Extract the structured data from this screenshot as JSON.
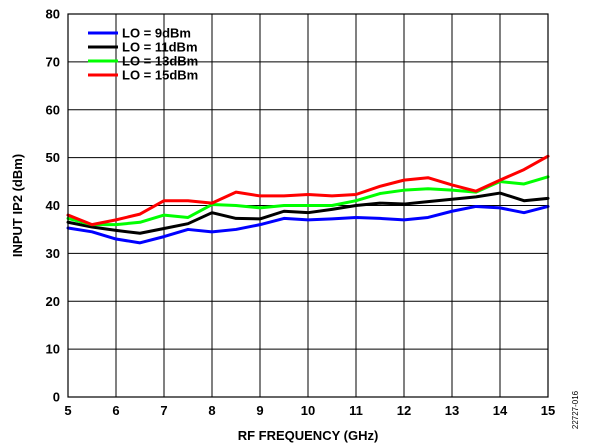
{
  "chart_data": {
    "type": "line",
    "xlabel": "RF FREQUENCY (GHz)",
    "ylabel": "INPUT IP2 (dBm)",
    "xlim": [
      5,
      15
    ],
    "ylim": [
      0,
      80
    ],
    "xticks": [
      5,
      6,
      7,
      8,
      9,
      10,
      11,
      12,
      13,
      14,
      15
    ],
    "yticks": [
      0,
      10,
      20,
      30,
      40,
      50,
      60,
      70,
      80
    ],
    "x_tick_labels": [
      "5",
      "6",
      "7",
      "8",
      "9",
      "10",
      "11",
      "12",
      "13",
      "14",
      "15"
    ],
    "y_tick_labels": [
      "0",
      "10",
      "20",
      "30",
      "40",
      "50",
      "60",
      "70",
      "80"
    ],
    "grid": true,
    "legend_position": "top-left",
    "figure_id": "22727-016",
    "series": [
      {
        "name": "LO = 9dBm",
        "color": "#0000ff",
        "x": [
          5,
          5.5,
          6,
          6.5,
          7,
          7.5,
          8,
          8.5,
          9,
          9.5,
          10,
          10.5,
          11,
          11.5,
          12,
          12.5,
          13,
          13.5,
          14,
          14.5,
          15
        ],
        "y": [
          35.3,
          34.5,
          33.0,
          32.2,
          33.5,
          35.0,
          34.5,
          35.0,
          36.0,
          37.3,
          37.0,
          37.2,
          37.5,
          37.3,
          37.0,
          37.5,
          38.8,
          39.8,
          39.5,
          38.5,
          39.8
        ]
      },
      {
        "name": "LO = 11dBm",
        "color": "#000000",
        "x": [
          5,
          5.5,
          6,
          6.5,
          7,
          7.5,
          8,
          8.5,
          9,
          9.5,
          10,
          10.5,
          11,
          11.5,
          12,
          12.5,
          13,
          13.5,
          14,
          14.5,
          15
        ],
        "y": [
          36.5,
          35.5,
          34.8,
          34.2,
          35.2,
          36.2,
          38.5,
          37.3,
          37.2,
          38.8,
          38.5,
          39.2,
          40.0,
          40.5,
          40.3,
          40.8,
          41.3,
          41.8,
          42.6,
          41.0,
          41.5
        ]
      },
      {
        "name": "LO = 13dBm",
        "color": "#00ff00",
        "x": [
          5,
          5.5,
          6,
          6.5,
          7,
          7.5,
          8,
          8.5,
          9,
          9.5,
          10,
          10.5,
          11,
          11.5,
          12,
          12.5,
          13,
          13.5,
          14,
          14.5,
          15
        ],
        "y": [
          37.3,
          36.0,
          36.0,
          36.5,
          38.0,
          37.5,
          40.2,
          40.0,
          39.5,
          40.0,
          40.0,
          40.0,
          41.0,
          42.5,
          43.2,
          43.5,
          43.2,
          42.8,
          45.0,
          44.5,
          46.0
        ]
      },
      {
        "name": "LO = 15dBm",
        "color": "#ff0000",
        "x": [
          5,
          5.5,
          6,
          6.5,
          7,
          7.5,
          8,
          8.5,
          9,
          9.5,
          10,
          10.5,
          11,
          11.5,
          12,
          12.5,
          13,
          13.5,
          14,
          14.5,
          15
        ],
        "y": [
          38.0,
          36.0,
          37.0,
          38.2,
          41.0,
          41.0,
          40.5,
          42.8,
          42.0,
          42.0,
          42.3,
          42.0,
          42.3,
          44.0,
          45.3,
          45.8,
          44.3,
          43.0,
          45.3,
          47.5,
          50.3
        ]
      }
    ]
  }
}
